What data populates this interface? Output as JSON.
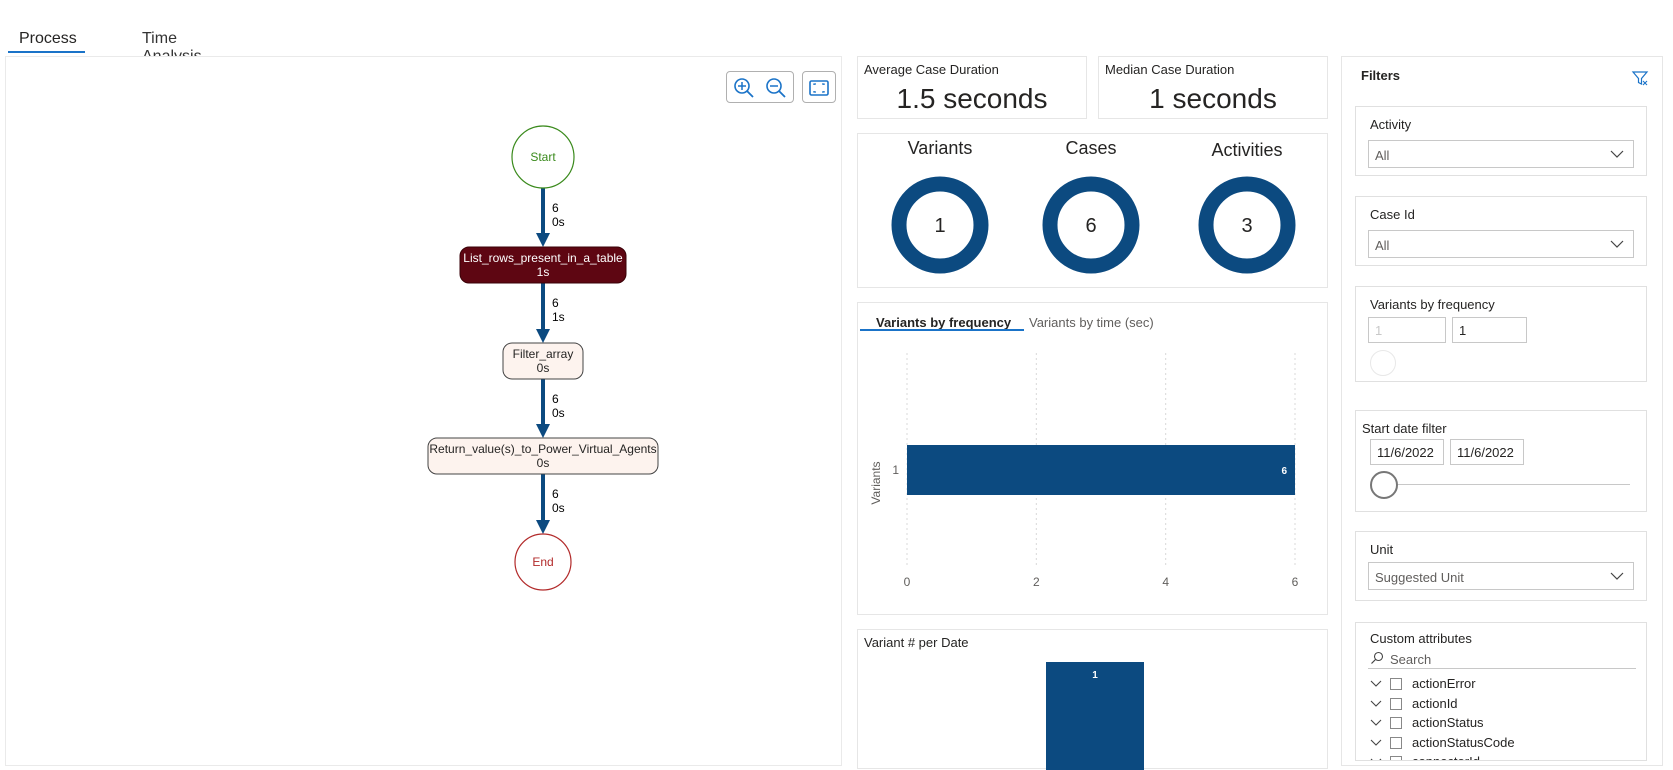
{
  "tabs": [
    {
      "label": "Process"
    },
    {
      "label": "Time Analysis"
    }
  ],
  "process_map": {
    "nodes": {
      "start": "Start",
      "list_rows": {
        "name": "List_rows_present_in_a_table",
        "duration": "1s"
      },
      "filter_array": {
        "name": "Filter_array",
        "duration": "0s"
      },
      "return_value": {
        "name": "Return_value(s)_to_Power_Virtual_Agents",
        "duration": "0s"
      },
      "end": "End"
    },
    "edges": [
      {
        "count": "6",
        "time": "0s"
      },
      {
        "count": "6",
        "time": "1s"
      },
      {
        "count": "6",
        "time": "0s"
      },
      {
        "count": "6",
        "time": "0s"
      }
    ],
    "icons": [
      "zoom-in-icon",
      "zoom-out-icon",
      "fit-screen-icon"
    ]
  },
  "kpis": {
    "avg_duration": {
      "label": "Average Case Duration",
      "value": "1.5 seconds"
    },
    "median_duration": {
      "label": "Median Case Duration",
      "value": "1 seconds"
    }
  },
  "donuts": [
    {
      "label": "Variants",
      "value": "1"
    },
    {
      "label": "Cases",
      "value": "6"
    },
    {
      "label": "Activities",
      "value": "3"
    }
  ],
  "variants_chart": {
    "tabs": [
      "Variants by frequency",
      "Variants by time (sec)"
    ],
    "ylabel": "Variants"
  },
  "variant_per_date": {
    "title": "Variant # per Date"
  },
  "chart_data": [
    {
      "type": "bar",
      "orientation": "horizontal",
      "categories": [
        "1"
      ],
      "values": [
        6
      ],
      "data_labels": [
        "6"
      ],
      "xlabel": "",
      "ylabel": "Variants",
      "xlim": [
        0,
        6
      ],
      "xticks": [
        "0",
        "2",
        "4",
        "6"
      ],
      "grid": true,
      "color": "#0c4a80"
    },
    {
      "type": "bar",
      "title": "Variant # per Date",
      "values": [
        1
      ],
      "data_labels": [
        "1"
      ],
      "color": "#0c4a80"
    }
  ],
  "filters": {
    "title": "Filters",
    "activity": {
      "label": "Activity",
      "value": "All"
    },
    "case_id": {
      "label": "Case Id",
      "value": "All"
    },
    "variants_by_frequency": {
      "label": "Variants by frequency",
      "min": "1",
      "max": "1"
    },
    "start_date": {
      "label": "Start date filter",
      "from": "11/6/2022",
      "to": "11/6/2022"
    },
    "unit": {
      "label": "Unit",
      "value": "Suggested Unit"
    },
    "custom_attributes": {
      "label": "Custom attributes",
      "search_placeholder": "Search",
      "items": [
        "actionError",
        "actionId",
        "actionStatus",
        "actionStatusCode",
        "connectorId"
      ]
    }
  },
  "colors": {
    "accent": "#1a73c8",
    "bar": "#0c4a80",
    "node_dark": "#5e0612",
    "node_light": "#fdf3ee",
    "start": "#3a8a1c",
    "end": "#b22a2a"
  }
}
